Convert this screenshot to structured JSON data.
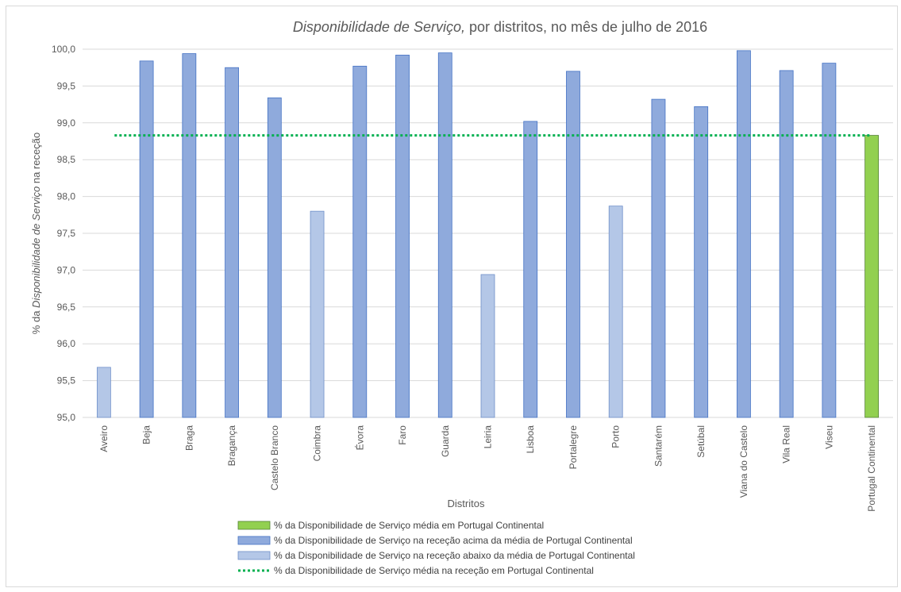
{
  "chart_data": {
    "type": "bar",
    "title_italic": "Disponibilidade de Serviço,",
    "title_rest": " por distritos, no mês de julho de 2016",
    "xlabel": "Distritos",
    "ylabel_prefix": "% da ",
    "ylabel_italic": "Disponibilidade de Serviço",
    "ylabel_suffix": " na receção",
    "ylim": [
      95.0,
      100.0
    ],
    "yticks": [
      "95,0",
      "95,5",
      "96,0",
      "96,5",
      "97,0",
      "97,5",
      "98,0",
      "98,5",
      "99,0",
      "99,5",
      "100,0"
    ],
    "grid": true,
    "categories": [
      "Aveiro",
      "Beja",
      "Braga",
      "Bragança",
      "Castelo Branco",
      "Coimbra",
      "Évora",
      "Faro",
      "Guarda",
      "Leiria",
      "Lisboa",
      "Portalegre",
      "Porto",
      "Santarém",
      "Setúbal",
      "Viana do Castelo",
      "Vila Real",
      "Viseu",
      "Portugal Continental"
    ],
    "values": [
      95.68,
      99.84,
      99.94,
      99.75,
      99.34,
      97.8,
      99.77,
      99.92,
      99.95,
      96.94,
      99.02,
      99.7,
      97.87,
      99.32,
      99.22,
      99.98,
      99.71,
      99.81,
      98.83
    ],
    "groups": [
      "below",
      "above",
      "above",
      "above",
      "above",
      "below",
      "above",
      "above",
      "above",
      "below",
      "above",
      "above",
      "below",
      "above",
      "above",
      "above",
      "above",
      "above",
      "average"
    ],
    "average_line": 98.83,
    "colors": {
      "above": "#8faadc",
      "above_border": "#4472c4",
      "below": "#b4c7e7",
      "below_border": "#6f8fc9",
      "average": "#92d050",
      "average_border": "#548235",
      "line": "#00b050",
      "grid": "#d9d9d9"
    },
    "legend": [
      {
        "kind": "average",
        "label": "% da Disponibilidade de Serviço média em Portugal Continental"
      },
      {
        "kind": "above",
        "label": "% da Disponibilidade de Serviço na receção acima da média de Portugal Continental"
      },
      {
        "kind": "below",
        "label": "% da Disponibilidade de Serviço na receção abaixo da média de Portugal Continental"
      },
      {
        "kind": "line",
        "label": "% da Disponibilidade de Serviço média na receção em Portugal Continental"
      }
    ],
    "legend_position": "bottom"
  }
}
